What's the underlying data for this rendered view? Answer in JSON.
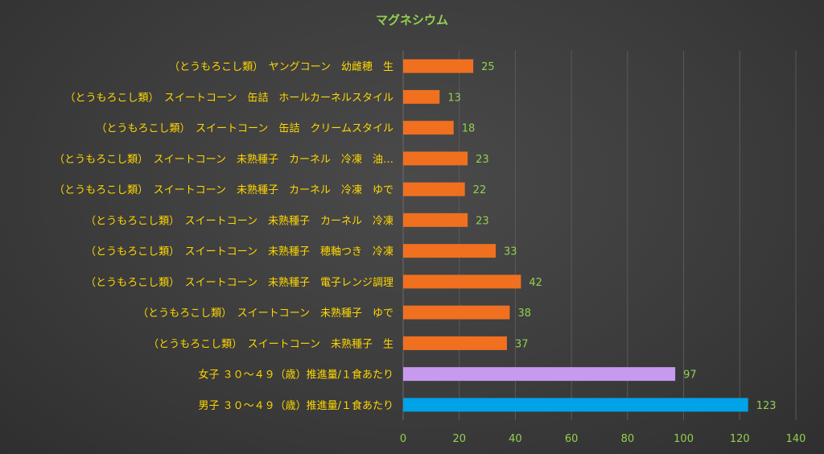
{
  "chart_data": {
    "type": "bar",
    "orientation": "horizontal",
    "title": "マグネシウム",
    "categories": [
      "（とうもろこし類）　ヤングコーン　幼雌穂　生",
      "（とうもろこし類）　スイートコーン　缶詰　ホールカーネルスタイル",
      "（とうもろこし類）　スイートコーン　缶詰　クリームスタイル",
      "（とうもろこし類）　スイートコーン　未熟種子　カーネル　冷凍　油…",
      "（とうもろこし類）　スイートコーン　未熟種子　カーネル　冷凍　ゆで",
      "（とうもろこし類）　スイートコーン　未熟種子　カーネル　冷凍",
      "（とうもろこし類）　スイートコーン　未熟種子　穂軸つき　冷凍",
      "（とうもろこし類）　スイートコーン　未熟種子　電子レンジ調理",
      "（とうもろこし類）　スイートコーン　未熟種子　ゆで",
      "（とうもろこし類）　スイートコーン　未熟種子　生",
      "女子 ３０～４９（歳）推進量/１食あたり",
      "男子 ３０～４９（歳）推進量/１食あたり"
    ],
    "values": [
      25,
      13,
      18,
      23,
      22,
      23,
      33,
      42,
      38,
      37,
      97,
      123
    ],
    "bar_colors": [
      "#f07020",
      "#f07020",
      "#f07020",
      "#f07020",
      "#f07020",
      "#f07020",
      "#f07020",
      "#f07020",
      "#f07020",
      "#f07020",
      "#c79af0",
      "#00a2e8"
    ],
    "x_ticks": [
      0,
      20,
      40,
      60,
      80,
      100,
      120,
      140
    ],
    "xlim": [
      0,
      140
    ],
    "grid": true,
    "data_labels": true,
    "colors": {
      "title": "#92d050",
      "category_label": "#ffd700",
      "value_label": "#92d050",
      "tick_label": "#92d050",
      "grid": "#5a5a5a"
    }
  }
}
